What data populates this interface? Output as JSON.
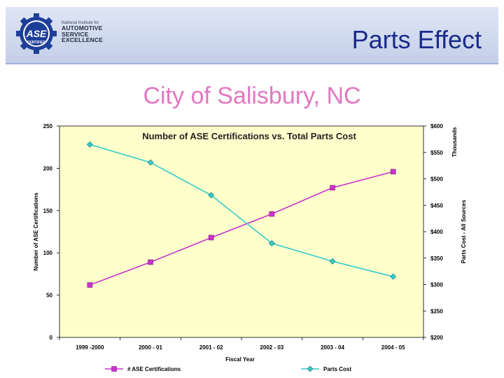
{
  "logo": {
    "badge_text": "ASE",
    "badge_sub": "CERTIFIED",
    "small": "National Institute for",
    "line1": "AUTOMOTIVE",
    "line2": "SERVICE",
    "line3": "EXCELLENCE"
  },
  "slide": {
    "title": "Parts Effect",
    "subtitle": "City of Salisbury, NC"
  },
  "colors": {
    "plot_bg": "#ffffcc",
    "ase_series": "#cc33cc",
    "parts_series": "#33cccc",
    "slide_title": "#1a2a8a",
    "subtitle": "#e377c2"
  },
  "chart_data": {
    "type": "line",
    "title": "Number of ASE Certifications vs. Total Parts Cost",
    "xlabel": "Fiscal Year",
    "ylabel": "Number of ASE Certifications",
    "y2label": "Parts Cost - All Sources",
    "y2unit": "Thousands",
    "categories": [
      "1999 -2000",
      "2000 - 01",
      "2001 - 02",
      "2002 - 03",
      "2003 - 04",
      "2004 - 05"
    ],
    "ylim": [
      0,
      250
    ],
    "yticks": [
      0,
      50,
      100,
      150,
      200,
      250
    ],
    "y2lim": [
      200,
      600
    ],
    "y2ticks": [
      200,
      250,
      300,
      350,
      400,
      450,
      500,
      550,
      600
    ],
    "y2ticklabels": [
      "$200",
      "$250",
      "$300",
      "$350",
      "$400",
      "$450",
      "$500",
      "$550",
      "$600"
    ],
    "grid": false,
    "legend_position": "bottom",
    "series": [
      {
        "name": "# ASE Certifications",
        "axis": "left",
        "marker": "square",
        "values": [
          62,
          89,
          118,
          146,
          177,
          196
        ]
      },
      {
        "name": "Parts Cost",
        "axis": "right",
        "marker": "diamond",
        "values": [
          565,
          531,
          469,
          378,
          344,
          315
        ]
      }
    ]
  }
}
